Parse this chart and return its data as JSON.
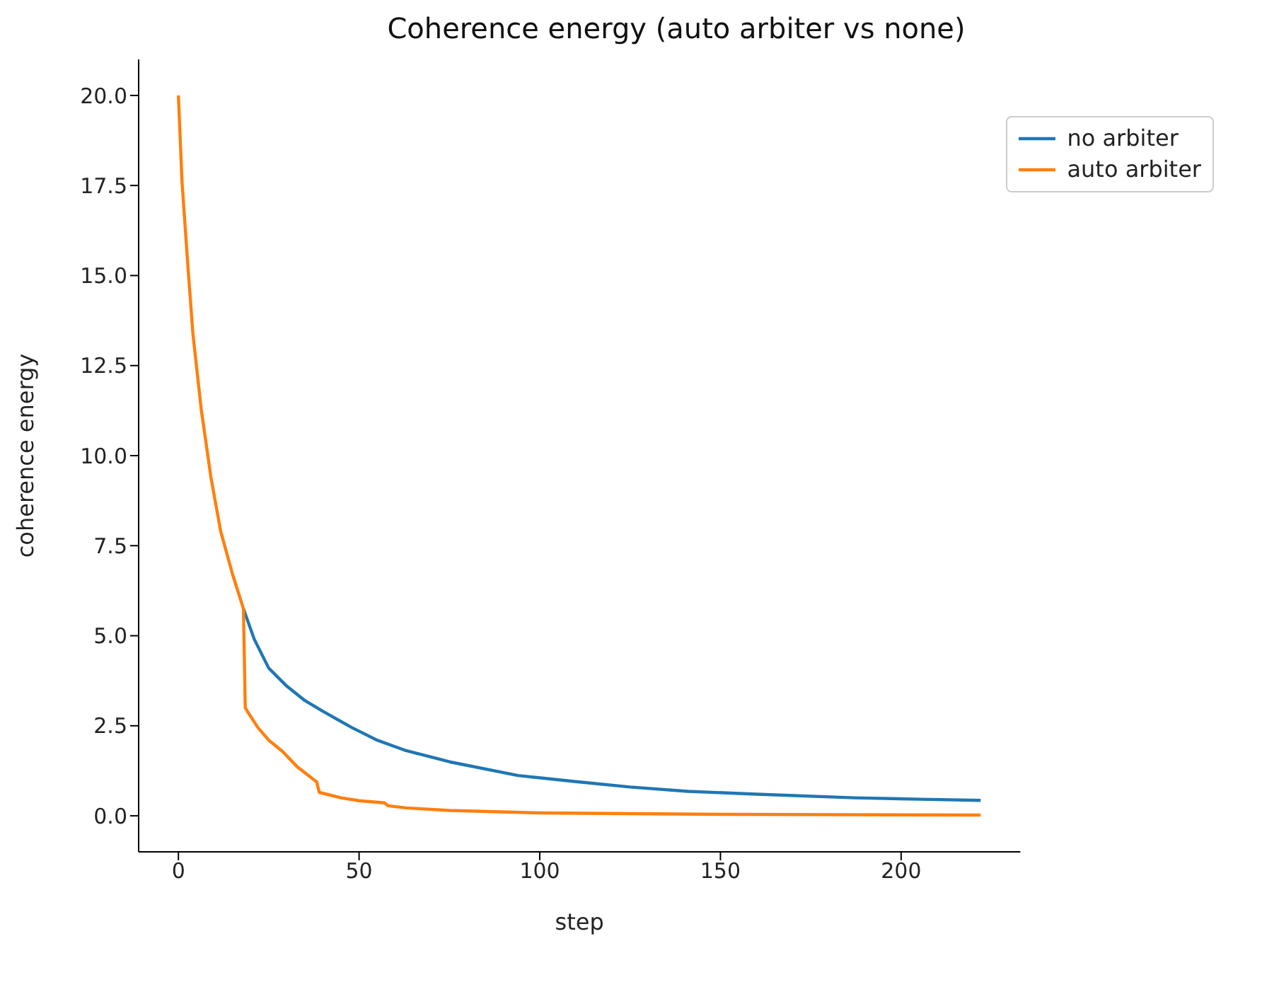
{
  "chart_data": {
    "type": "line",
    "title": "Coherence energy (auto arbiter vs none)",
    "xlabel": "step",
    "ylabel": "coherence energy",
    "xlim": [
      -11,
      233
    ],
    "ylim": [
      -1,
      21
    ],
    "xticks": [
      0,
      50,
      100,
      150,
      200
    ],
    "yticks": [
      {
        "value": 0,
        "label": "0.0"
      },
      {
        "value": 2.5,
        "label": "2.5"
      },
      {
        "value": 5,
        "label": "5.0"
      },
      {
        "value": 7.5,
        "label": "7.5"
      },
      {
        "value": 10,
        "label": "10.0"
      },
      {
        "value": 12.5,
        "label": "12.5"
      },
      {
        "value": 15,
        "label": "15.0"
      },
      {
        "value": 17.5,
        "label": "17.5"
      },
      {
        "value": 20,
        "label": "20.0"
      }
    ],
    "grid": false,
    "legend": "top right",
    "marker": "none",
    "line_style": "solid",
    "series": [
      {
        "name": "no arbiter",
        "color": "#1f77b4",
        "x": [
          18,
          21,
          25,
          30,
          35,
          40,
          48,
          55,
          63,
          75,
          94,
          110,
          125,
          141,
          160,
          187,
          205,
          222
        ],
        "values": [
          5.75,
          4.9,
          4.1,
          3.6,
          3.2,
          2.9,
          2.45,
          2.1,
          1.81,
          1.5,
          1.12,
          0.95,
          0.8,
          0.68,
          0.6,
          0.5,
          0.46,
          0.43
        ]
      },
      {
        "name": "auto arbiter",
        "color": "#ff7f0e",
        "x": [
          0,
          1,
          2.6,
          4,
          6.3,
          9,
          11.7,
          15,
          18,
          18.5,
          19.1,
          22,
          25,
          28.7,
          33,
          38.3,
          38.6,
          39,
          45,
          50,
          57,
          58,
          63,
          75,
          100,
          150,
          222
        ],
        "values": [
          20,
          17.6,
          15.3,
          13.4,
          11.3,
          9.4,
          7.9,
          6.7,
          5.75,
          3.0,
          2.9,
          2.45,
          2.1,
          1.8,
          1.35,
          0.94,
          0.8,
          0.65,
          0.5,
          0.42,
          0.36,
          0.28,
          0.22,
          0.15,
          0.08,
          0.04,
          0.02
        ]
      }
    ]
  }
}
